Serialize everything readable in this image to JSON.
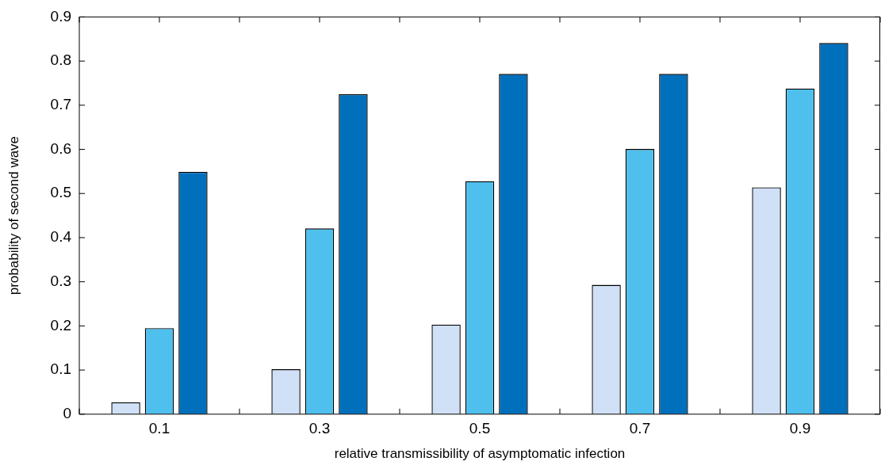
{
  "chart_data": {
    "type": "bar",
    "xlabel": "relative transmissibility of asymptomatic infection",
    "ylabel": "probability of second wave",
    "categories": [
      "0.1",
      "0.3",
      "0.5",
      "0.7",
      "0.9"
    ],
    "series": [
      {
        "color": "#cfe0f7",
        "values": [
          0.027,
          0.102,
          0.203,
          0.293,
          0.514
        ]
      },
      {
        "color": "#4fbfed",
        "values": [
          0.195,
          0.421,
          0.528,
          0.601,
          0.738
        ]
      },
      {
        "color": "#0070bd",
        "values": [
          0.549,
          0.725,
          0.771,
          0.771,
          0.841
        ]
      }
    ],
    "ylim": [
      0,
      0.9
    ],
    "yticks": [
      0,
      0.1,
      0.2,
      0.3,
      0.4,
      0.5,
      0.6,
      0.7,
      0.8,
      0.9
    ],
    "grid": false,
    "legend": false
  }
}
